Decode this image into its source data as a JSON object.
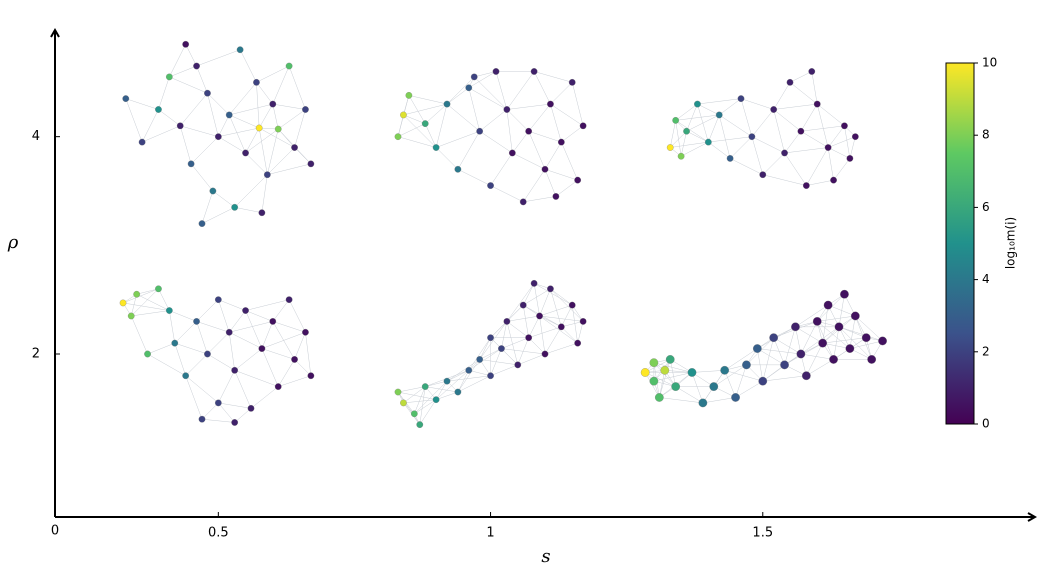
{
  "chart_data": {
    "type": "scatter",
    "xlabel": "s",
    "ylabel": "ρ",
    "origin_label": "0",
    "xlim": [
      0.2,
      2.0
    ],
    "ylim": [
      0.5,
      5.0
    ],
    "xticks": [
      0.5,
      1,
      1.5
    ],
    "yticks": [
      2,
      4
    ],
    "colormap": "viridis",
    "clim": [
      0,
      10
    ],
    "cticks": [
      0,
      2,
      4,
      6,
      8,
      10
    ],
    "colorbar_label": "log₁₀m(i)",
    "series": [
      {
        "x": [
          0.33,
          0.36,
          0.39,
          0.41,
          0.43,
          0.45,
          0.46,
          0.48,
          0.49,
          0.5,
          0.52,
          0.53,
          0.54,
          0.55,
          0.57,
          0.575,
          0.59,
          0.6,
          0.61,
          0.63,
          0.64,
          0.66,
          0.67,
          0.47,
          0.44,
          0.58
        ],
        "values": [
          4.35,
          3.95,
          4.25,
          4.55,
          4.1,
          3.75,
          4.65,
          4.4,
          3.5,
          4.0,
          4.2,
          3.35,
          4.8,
          3.85,
          4.5,
          4.08,
          3.65,
          4.3,
          4.07,
          4.65,
          3.9,
          4.25,
          3.75,
          3.2,
          4.85,
          3.3
        ],
        "c": [
          3,
          2,
          5,
          7,
          1,
          3,
          1,
          2,
          4,
          1,
          3,
          5,
          4,
          1,
          2,
          10,
          2,
          1,
          8,
          7,
          1,
          2,
          1,
          3,
          0.5,
          1
        ]
      },
      {
        "x": [
          0.84,
          0.83,
          0.85,
          0.88,
          0.9,
          0.92,
          0.94,
          0.96,
          0.98,
          1.0,
          1.01,
          1.03,
          1.04,
          1.06,
          1.07,
          1.08,
          1.1,
          1.11,
          1.13,
          1.15,
          1.16,
          1.17,
          1.12,
          0.97
        ],
        "values": [
          4.2,
          4.0,
          4.38,
          4.12,
          3.9,
          4.3,
          3.7,
          4.45,
          4.05,
          3.55,
          4.6,
          4.25,
          3.85,
          3.4,
          4.05,
          4.6,
          3.7,
          4.3,
          3.95,
          4.5,
          3.6,
          4.1,
          3.45,
          4.55
        ],
        "c": [
          9.5,
          8,
          8,
          6,
          5,
          4,
          4,
          3,
          2,
          2,
          1,
          1,
          0.5,
          1,
          0.5,
          1,
          0.5,
          0.5,
          0.5,
          1,
          0.5,
          0.5,
          0.5,
          2
        ]
      },
      {
        "x": [
          1.33,
          1.34,
          1.35,
          1.36,
          1.38,
          1.4,
          1.42,
          1.44,
          1.46,
          1.48,
          1.5,
          1.52,
          1.54,
          1.55,
          1.57,
          1.58,
          1.6,
          1.62,
          1.63,
          1.65,
          1.66,
          1.67,
          1.59
        ],
        "values": [
          3.9,
          4.15,
          3.82,
          4.05,
          4.3,
          3.95,
          4.2,
          3.8,
          4.35,
          4.0,
          3.65,
          4.25,
          3.85,
          4.5,
          4.05,
          3.55,
          4.3,
          3.9,
          3.6,
          4.1,
          3.8,
          4.0,
          4.6
        ],
        "c": [
          10,
          7,
          8,
          6,
          5,
          5,
          4,
          3,
          2,
          2,
          1,
          1,
          1,
          1,
          0.5,
          0.5,
          0.5,
          0.5,
          0.5,
          0.5,
          0.5,
          0.5,
          1
        ]
      },
      {
        "x": [
          0.325,
          0.35,
          0.34,
          0.37,
          0.39,
          0.41,
          0.42,
          0.44,
          0.46,
          0.48,
          0.5,
          0.5,
          0.52,
          0.53,
          0.55,
          0.56,
          0.58,
          0.6,
          0.61,
          0.63,
          0.64,
          0.66,
          0.67,
          0.53,
          0.47
        ],
        "values": [
          2.47,
          2.55,
          2.35,
          2.0,
          2.6,
          2.4,
          2.1,
          1.8,
          2.3,
          2.0,
          2.5,
          1.55,
          2.2,
          1.85,
          2.4,
          1.5,
          2.05,
          2.3,
          1.7,
          2.5,
          1.95,
          2.2,
          1.8,
          1.37,
          1.4
        ],
        "c": [
          10,
          8,
          8,
          7,
          7,
          5,
          4,
          4,
          3,
          2,
          2,
          2,
          1,
          1,
          1,
          1,
          0.5,
          0.5,
          0.5,
          1,
          0.5,
          0.5,
          0.5,
          1,
          2
        ]
      },
      {
        "x": [
          0.84,
          0.83,
          0.86,
          0.87,
          0.88,
          0.9,
          0.92,
          0.94,
          0.96,
          0.98,
          1.0,
          1.0,
          1.02,
          1.03,
          1.05,
          1.06,
          1.07,
          1.09,
          1.1,
          1.11,
          1.13,
          1.15,
          1.16,
          1.17,
          1.08
        ],
        "values": [
          1.55,
          1.65,
          1.45,
          1.35,
          1.7,
          1.58,
          1.75,
          1.65,
          1.85,
          1.95,
          1.8,
          2.15,
          2.05,
          2.3,
          1.9,
          2.45,
          2.15,
          2.35,
          2.0,
          2.6,
          2.25,
          2.45,
          2.1,
          2.3,
          2.65
        ],
        "c": [
          9,
          8,
          7,
          6,
          6,
          5,
          4,
          4,
          3,
          3,
          2,
          2,
          2,
          1,
          1,
          1,
          0.5,
          0.5,
          0.5,
          1,
          0.5,
          0.5,
          0.5,
          0.5,
          1
        ]
      },
      {
        "x": [
          1.284,
          1.3,
          1.3,
          1.31,
          1.32,
          1.33,
          1.34,
          1.37,
          1.39,
          1.41,
          1.43,
          1.45,
          1.47,
          1.49,
          1.5,
          1.52,
          1.54,
          1.56,
          1.57,
          1.58,
          1.6,
          1.61,
          1.62,
          1.63,
          1.64,
          1.65,
          1.66,
          1.67,
          1.69,
          1.7,
          1.72
        ],
        "values": [
          1.83,
          1.92,
          1.75,
          1.6,
          1.85,
          1.95,
          1.7,
          1.83,
          1.55,
          1.7,
          1.85,
          1.6,
          1.9,
          2.05,
          1.75,
          2.15,
          1.9,
          2.25,
          2.0,
          1.8,
          2.3,
          2.1,
          2.45,
          1.95,
          2.25,
          2.55,
          2.05,
          2.35,
          2.15,
          1.95,
          2.12
        ],
        "c": [
          10,
          8,
          7,
          7,
          9,
          6,
          6,
          5,
          4,
          4,
          4,
          3,
          3,
          3,
          2,
          2,
          2,
          1,
          1,
          1,
          0.5,
          0.5,
          0.5,
          0.5,
          0.5,
          0.5,
          0.5,
          0.5,
          0.5,
          0.5,
          0.5
        ]
      }
    ]
  }
}
